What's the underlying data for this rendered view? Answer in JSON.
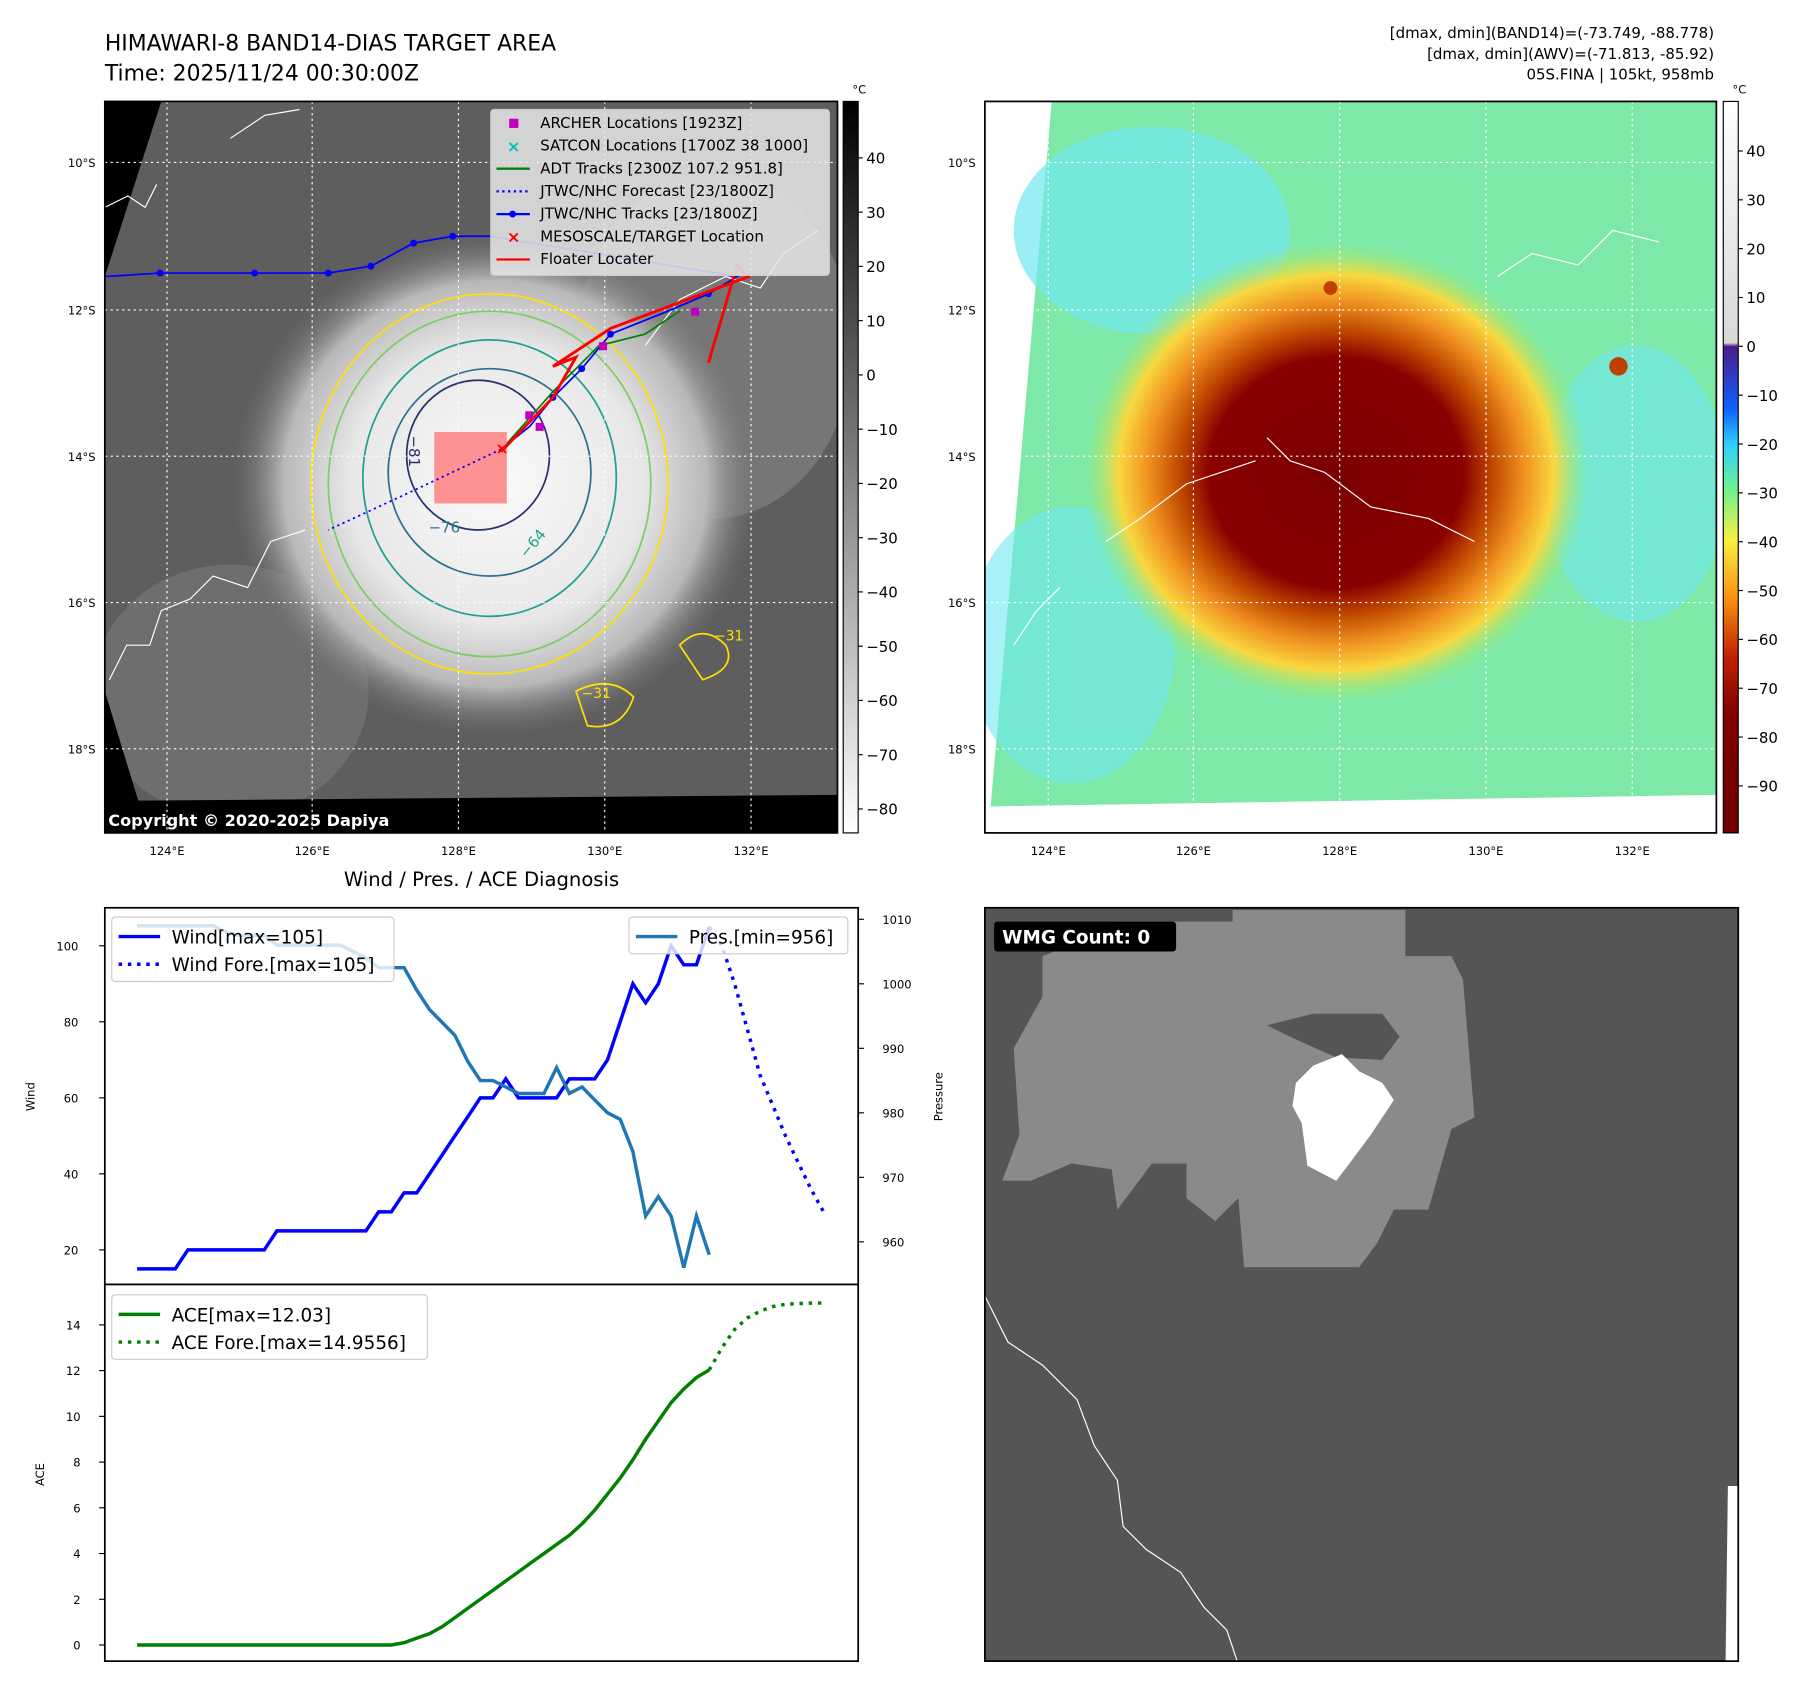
{
  "header": {
    "title": "HIMAWARI-8 BAND14-DIAS TARGET AREA",
    "time": "Time: 2025/11/24 00:30:00Z",
    "stats_band14": "[dmax, dmin](BAND14)=(-73.749, -88.778)",
    "stats_awv": "[dmax, dmin](AWV)=(-71.813, -85.92)",
    "storm": "05S.FINA | 105kt, 958mb"
  },
  "maps": {
    "unit": "°C",
    "lat_labels": [
      "10°S",
      "12°S",
      "14°S",
      "16°S",
      "18°S"
    ],
    "lon_labels": [
      "124°E",
      "126°E",
      "128°E",
      "130°E",
      "132°E"
    ],
    "left_colorbar_ticks": [
      "40",
      "30",
      "20",
      "10",
      "0",
      "−10",
      "−20",
      "−30",
      "−40",
      "−50",
      "−60",
      "−70",
      "−80"
    ],
    "right_colorbar_ticks": [
      "40",
      "30",
      "20",
      "10",
      "0",
      "−10",
      "−20",
      "−30",
      "−40",
      "−50",
      "−60",
      "−70",
      "−80",
      "−90"
    ],
    "copyright": "Copyright © 2020-2025 Dapiya",
    "contour_labels": [
      "−81",
      "−76",
      "−64",
      "−31",
      "−31"
    ],
    "legend": [
      {
        "label": "ARCHER Locations [1923Z]",
        "color": "#c000c0"
      },
      {
        "label": "SATCON Locations [1700Z 38 1000]",
        "color": "#00c0c0"
      },
      {
        "label": "ADT Tracks [2300Z 107.2 951.8]",
        "color": "#008000"
      },
      {
        "label": "JTWC/NHC Forecast [23/1800Z]",
        "color": "#0000ff"
      },
      {
        "label": "JTWC/NHC Tracks [23/1800Z]",
        "color": "#0000ff"
      },
      {
        "label": "MESOSCALE/TARGET Location",
        "color": "#ff0000"
      },
      {
        "label": "Floater Locater",
        "color": "#ff0000"
      }
    ]
  },
  "wmg": {
    "label": "WMG Count: 0"
  },
  "chart_data": [
    {
      "type": "line",
      "title": "Wind / Pres. / ACE Diagnosis",
      "ylabel": "Wind",
      "y2label": "Pressure",
      "ylim": [
        10,
        110
      ],
      "y2lim": [
        954,
        1012
      ],
      "yticks": [
        20,
        40,
        60,
        80,
        100
      ],
      "y2ticks": [
        960,
        970,
        980,
        990,
        1000,
        1010
      ],
      "series": [
        {
          "name": "Wind[max=105]",
          "color": "#0000ff",
          "style": "solid",
          "x_start": 0,
          "values": [
            15,
            15,
            15,
            15,
            20,
            20,
            20,
            20,
            20,
            20,
            20,
            25,
            25,
            25,
            25,
            25,
            25,
            25,
            25,
            30,
            30,
            35,
            35,
            40,
            45,
            50,
            55,
            60,
            60,
            65,
            60,
            60,
            60,
            60,
            65,
            65,
            65,
            70,
            80,
            90,
            85,
            90,
            100,
            95,
            95,
            105
          ]
        },
        {
          "name": "Wind Fore.[max=105]",
          "color": "#0000ff",
          "style": "dotted",
          "x_start": 45,
          "values": [
            105,
            100,
            90,
            78,
            66,
            58,
            50,
            43,
            36,
            30
          ]
        },
        {
          "name": "Pres.[min=956]",
          "color": "#1f77b4",
          "style": "solid",
          "axis": "right",
          "x_start": 0,
          "values": [
            1009,
            1009,
            1009,
            1009,
            1009,
            1009,
            1009,
            1008,
            1007.5,
            1007.5,
            1007.5,
            1006,
            1006,
            1006,
            1006,
            1006,
            1006,
            1005,
            1004,
            1002.5,
            1002.5,
            1002.5,
            999,
            996,
            994,
            992,
            988,
            985,
            985,
            984,
            983,
            983,
            983,
            987,
            983,
            984,
            982,
            980,
            979,
            974,
            964,
            967,
            964,
            956,
            964,
            958
          ]
        }
      ]
    },
    {
      "type": "line",
      "ylabel": "ACE",
      "ylim": [
        -0.8,
        15.6
      ],
      "yticks": [
        0,
        2,
        4,
        6,
        8,
        10,
        12,
        14
      ],
      "series": [
        {
          "name": "ACE[max=12.03]",
          "color": "#008000",
          "style": "solid",
          "x_start": 0,
          "values": [
            0,
            0,
            0,
            0,
            0,
            0,
            0,
            0,
            0,
            0,
            0,
            0,
            0,
            0,
            0,
            0,
            0,
            0,
            0,
            0,
            0,
            0.1,
            0.3,
            0.5,
            0.8,
            1.2,
            1.6,
            2.0,
            2.4,
            2.8,
            3.2,
            3.6,
            4.0,
            4.4,
            4.8,
            5.3,
            5.9,
            6.6,
            7.3,
            8.1,
            9.0,
            9.8,
            10.6,
            11.2,
            11.7,
            12.03
          ]
        },
        {
          "name": "ACE Fore.[max=14.9556]",
          "color": "#008000",
          "style": "dotted",
          "x_start": 45,
          "values": [
            12.03,
            13.0,
            13.8,
            14.3,
            14.6,
            14.8,
            14.9,
            14.93,
            14.95,
            14.9556
          ]
        }
      ]
    }
  ]
}
